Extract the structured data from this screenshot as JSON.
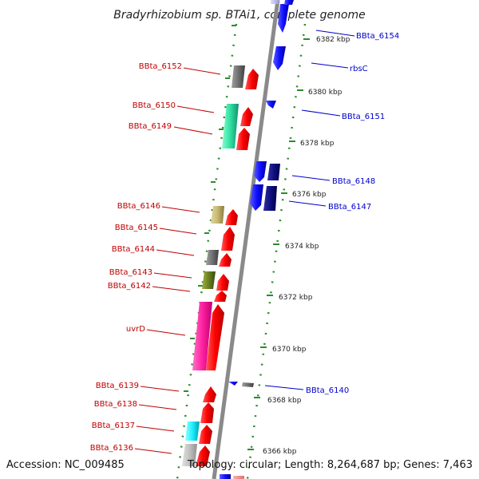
{
  "title": "Bradyrhizobium sp. BTAi1, complete genome",
  "footer": {
    "accession": "Accession: NC_009485",
    "topology": "Topology: circular; Length: 8,264,687 bp; Genes: 7,463"
  },
  "colors": {
    "backbone": "#8a8a8a",
    "dots": "#2e8b2e",
    "forward_gene": "#ff1010",
    "reverse_gene": "#1a1aff",
    "label_red": "#c00000",
    "label_blue": "#0000cc"
  },
  "ticks": [
    "6382 kbp",
    "6380 kbp",
    "6378 kbp",
    "6376 kbp",
    "6374 kbp",
    "6372 kbp",
    "6370 kbp",
    "6368 kbp",
    "6366 kbp"
  ],
  "labels_left": [
    "BBta_6152",
    "BBta_6150",
    "BBta_6149",
    "BBta_6146",
    "BBta_6145",
    "BBta_6144",
    "BBta_6143",
    "BBta_6142",
    "uvrD",
    "BBta_6139",
    "BBta_6138",
    "BBta_6137",
    "BBta_6136"
  ],
  "labels_right": [
    "BBta_6154",
    "rbsC",
    "BBta_6151",
    "BBta_6148",
    "BBta_6147",
    "BBta_6140"
  ]
}
